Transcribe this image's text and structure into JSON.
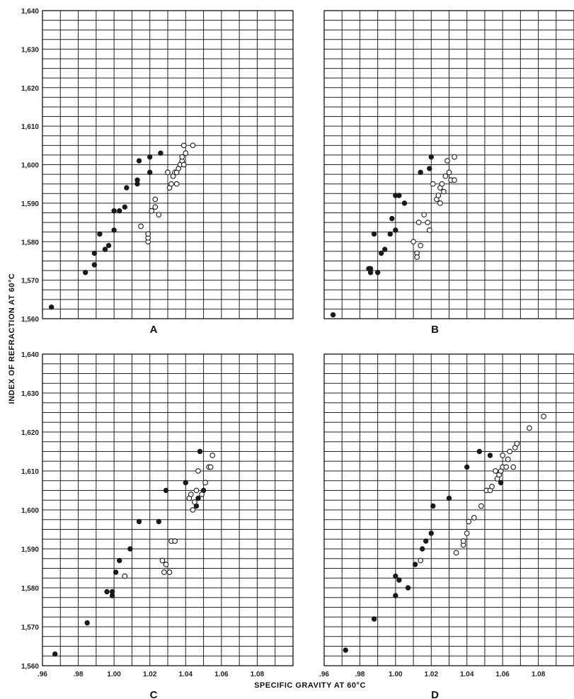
{
  "chart_data": [
    {
      "type": "scatter",
      "panel_label": "A",
      "xlim": [
        0.96,
        1.1
      ],
      "ylim": [
        1.56,
        1.64
      ],
      "yticks": [
        "1,640",
        "1,630",
        "1,620",
        "1,610",
        "1,600",
        "1,590",
        "1,580",
        "1,570",
        "1,560"
      ],
      "xticks": [],
      "series": [
        {
          "marker": "filled",
          "points": [
            [
              0.965,
              1.563
            ],
            [
              0.984,
              1.572
            ],
            [
              0.989,
              1.574
            ],
            [
              0.989,
              1.577
            ],
            [
              0.992,
              1.582
            ],
            [
              0.995,
              1.578
            ],
            [
              0.997,
              1.579
            ],
            [
              1.0,
              1.583
            ],
            [
              1.0,
              1.588
            ],
            [
              1.003,
              1.588
            ],
            [
              1.006,
              1.589
            ],
            [
              1.007,
              1.594
            ],
            [
              1.013,
              1.595
            ],
            [
              1.013,
              1.596
            ],
            [
              1.014,
              1.601
            ],
            [
              1.02,
              1.598
            ],
            [
              1.02,
              1.602
            ],
            [
              1.026,
              1.603
            ]
          ]
        },
        {
          "marker": "open",
          "points": [
            [
              1.015,
              1.584
            ],
            [
              1.019,
              1.58
            ],
            [
              1.019,
              1.581
            ],
            [
              1.019,
              1.582
            ],
            [
              1.021,
              1.588
            ],
            [
              1.023,
              1.589
            ],
            [
              1.023,
              1.591
            ],
            [
              1.025,
              1.587
            ],
            [
              1.03,
              1.598
            ],
            [
              1.031,
              1.594
            ],
            [
              1.032,
              1.595
            ],
            [
              1.033,
              1.597
            ],
            [
              1.034,
              1.598
            ],
            [
              1.035,
              1.595
            ],
            [
              1.035,
              1.598
            ],
            [
              1.036,
              1.599
            ],
            [
              1.037,
              1.6
            ],
            [
              1.038,
              1.601
            ],
            [
              1.038,
              1.602
            ],
            [
              1.039,
              1.6
            ],
            [
              1.04,
              1.603
            ],
            [
              1.039,
              1.605
            ],
            [
              1.044,
              1.605
            ]
          ]
        }
      ]
    },
    {
      "type": "scatter",
      "panel_label": "B",
      "xlim": [
        0.96,
        1.1
      ],
      "ylim": [
        1.56,
        1.64
      ],
      "yticks": [],
      "xticks": [],
      "series": [
        {
          "marker": "filled",
          "points": [
            [
              0.965,
              1.561
            ],
            [
              0.985,
              1.573
            ],
            [
              0.986,
              1.573
            ],
            [
              0.986,
              1.572
            ],
            [
              0.988,
              1.582
            ],
            [
              0.99,
              1.572
            ],
            [
              0.992,
              1.577
            ],
            [
              0.994,
              1.578
            ],
            [
              0.997,
              1.582
            ],
            [
              0.998,
              1.586
            ],
            [
              1.0,
              1.583
            ],
            [
              1.0,
              1.592
            ],
            [
              1.002,
              1.592
            ],
            [
              1.005,
              1.59
            ],
            [
              1.014,
              1.598
            ],
            [
              1.019,
              1.599
            ],
            [
              1.02,
              1.602
            ]
          ]
        },
        {
          "marker": "open",
          "points": [
            [
              1.01,
              1.58
            ],
            [
              1.012,
              1.577
            ],
            [
              1.012,
              1.576
            ],
            [
              1.013,
              1.585
            ],
            [
              1.014,
              1.579
            ],
            [
              1.016,
              1.587
            ],
            [
              1.018,
              1.585
            ],
            [
              1.019,
              1.583
            ],
            [
              1.021,
              1.595
            ],
            [
              1.023,
              1.591
            ],
            [
              1.024,
              1.592
            ],
            [
              1.025,
              1.59
            ],
            [
              1.025,
              1.594
            ],
            [
              1.026,
              1.595
            ],
            [
              1.027,
              1.593
            ],
            [
              1.028,
              1.597
            ],
            [
              1.029,
              1.601
            ],
            [
              1.03,
              1.598
            ],
            [
              1.031,
              1.596
            ],
            [
              1.033,
              1.596
            ],
            [
              1.033,
              1.602
            ]
          ]
        }
      ]
    },
    {
      "type": "scatter",
      "panel_label": "C",
      "xlim": [
        0.96,
        1.1
      ],
      "ylim": [
        1.56,
        1.64
      ],
      "yticks": [
        "1,640",
        "1,630",
        "1,620",
        "1,610",
        "1,600",
        "1,590",
        "1,580",
        "1,570",
        "1,560"
      ],
      "xticks": [
        ".96",
        ".98",
        "1.00",
        "1.02",
        "1.04",
        "1.06",
        "1.08"
      ],
      "series": [
        {
          "marker": "filled",
          "points": [
            [
              0.967,
              1.563
            ],
            [
              0.985,
              1.571
            ],
            [
              0.996,
              1.579
            ],
            [
              0.999,
              1.579
            ],
            [
              0.999,
              1.578
            ],
            [
              1.001,
              1.584
            ],
            [
              1.003,
              1.587
            ],
            [
              1.009,
              1.59
            ],
            [
              1.014,
              1.597
            ],
            [
              1.025,
              1.597
            ],
            [
              1.029,
              1.605
            ],
            [
              1.04,
              1.607
            ],
            [
              1.046,
              1.601
            ],
            [
              1.047,
              1.603
            ],
            [
              1.048,
              1.615
            ],
            [
              1.05,
              1.605
            ]
          ]
        },
        {
          "marker": "open",
          "points": [
            [
              1.006,
              1.583
            ],
            [
              1.027,
              1.587
            ],
            [
              1.028,
              1.584
            ],
            [
              1.029,
              1.586
            ],
            [
              1.031,
              1.584
            ],
            [
              1.032,
              1.592
            ],
            [
              1.034,
              1.592
            ],
            [
              1.042,
              1.603
            ],
            [
              1.043,
              1.604
            ],
            [
              1.044,
              1.6
            ],
            [
              1.045,
              1.602
            ],
            [
              1.046,
              1.605
            ],
            [
              1.047,
              1.61
            ],
            [
              1.049,
              1.604
            ],
            [
              1.051,
              1.607
            ],
            [
              1.053,
              1.611
            ],
            [
              1.054,
              1.611
            ],
            [
              1.055,
              1.614
            ]
          ]
        }
      ]
    },
    {
      "type": "scatter",
      "panel_label": "D",
      "xlim": [
        0.96,
        1.1
      ],
      "ylim": [
        1.56,
        1.64
      ],
      "yticks": [],
      "xticks": [
        ".96",
        ".98",
        "1.00",
        "1.02",
        "1.04",
        "1.06",
        "1.08"
      ],
      "series": [
        {
          "marker": "filled",
          "points": [
            [
              0.972,
              1.564
            ],
            [
              0.988,
              1.572
            ],
            [
              1.0,
              1.578
            ],
            [
              1.0,
              1.583
            ],
            [
              1.002,
              1.582
            ],
            [
              1.007,
              1.58
            ],
            [
              1.011,
              1.586
            ],
            [
              1.015,
              1.59
            ],
            [
              1.017,
              1.592
            ],
            [
              1.02,
              1.594
            ],
            [
              1.021,
              1.601
            ],
            [
              1.03,
              1.603
            ],
            [
              1.04,
              1.611
            ],
            [
              1.047,
              1.615
            ],
            [
              1.053,
              1.614
            ],
            [
              1.059,
              1.607
            ]
          ]
        },
        {
          "marker": "open",
          "points": [
            [
              1.014,
              1.587
            ],
            [
              1.034,
              1.589
            ],
            [
              1.038,
              1.591
            ],
            [
              1.038,
              1.592
            ],
            [
              1.04,
              1.594
            ],
            [
              1.041,
              1.597
            ],
            [
              1.044,
              1.598
            ],
            [
              1.048,
              1.601
            ],
            [
              1.051,
              1.605
            ],
            [
              1.053,
              1.605
            ],
            [
              1.054,
              1.606
            ],
            [
              1.056,
              1.61
            ],
            [
              1.057,
              1.608
            ],
            [
              1.058,
              1.609
            ],
            [
              1.059,
              1.61
            ],
            [
              1.06,
              1.611
            ],
            [
              1.06,
              1.614
            ],
            [
              1.062,
              1.611
            ],
            [
              1.063,
              1.613
            ],
            [
              1.064,
              1.615
            ],
            [
              1.066,
              1.611
            ],
            [
              1.067,
              1.616
            ],
            [
              1.068,
              1.617
            ],
            [
              1.075,
              1.621
            ],
            [
              1.083,
              1.624
            ]
          ]
        }
      ]
    }
  ],
  "ylabel": "INDEX OF REFRACTION AT 60°C",
  "xlabel": "SPECIFIC GRAVITY AT 60°C"
}
